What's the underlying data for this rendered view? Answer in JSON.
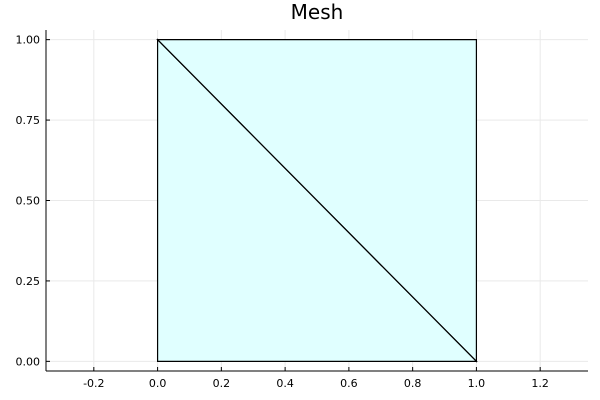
{
  "chart_data": {
    "type": "mesh",
    "title": "Mesh",
    "xlabel": "",
    "ylabel": "",
    "xlim": [
      -0.35,
      1.35
    ],
    "ylim": [
      -0.03,
      1.03
    ],
    "xticks": [
      -0.2,
      0.0,
      0.2,
      0.4,
      0.6,
      0.8,
      1.0,
      1.2
    ],
    "xtick_labels": [
      "-0.2",
      "0.0",
      "0.2",
      "0.4",
      "0.6",
      "0.8",
      "1.0",
      "1.2"
    ],
    "yticks": [
      0.0,
      0.25,
      0.5,
      0.75,
      1.0
    ],
    "ytick_labels": [
      "0.00",
      "0.25",
      "0.50",
      "0.75",
      "1.00"
    ],
    "grid": true,
    "legend": "none",
    "fill_color": "#e0ffff",
    "edge_color": "#000000",
    "vertices": [
      [
        0,
        0
      ],
      [
        1,
        0
      ],
      [
        1,
        1
      ],
      [
        0,
        1
      ]
    ],
    "triangles": [
      [
        0,
        1,
        3
      ],
      [
        1,
        2,
        3
      ]
    ]
  }
}
